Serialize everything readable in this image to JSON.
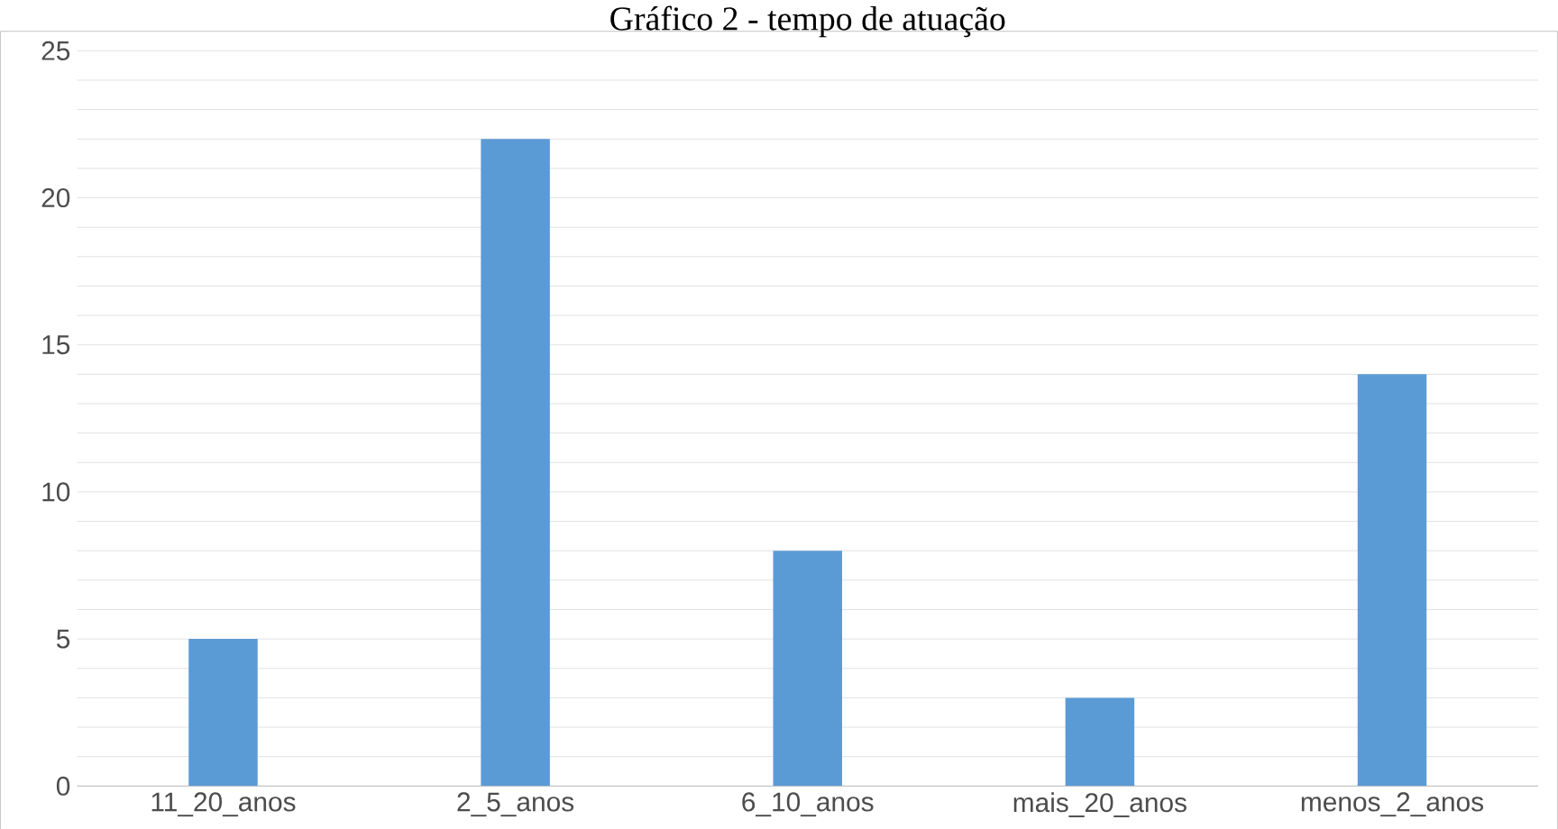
{
  "chart_data": {
    "type": "bar",
    "title": "Gráfico 2 - tempo de atuação",
    "categories": [
      "11_20_anos",
      "2_5_anos",
      "6_10_anos",
      "mais_20_anos",
      "menos_2_anos"
    ],
    "values": [
      5,
      22,
      8,
      3,
      14
    ],
    "color": "#5b9bd5",
    "ylim": [
      0,
      25
    ],
    "yticks": [
      0,
      {
        "value": 1,
        "label": null
      },
      {
        "value": 2,
        "label": null
      },
      {
        "value": 3,
        "label": null
      },
      {
        "value": 4,
        "label": null
      },
      5,
      {
        "value": 6,
        "label": null
      },
      {
        "value": 7,
        "label": null
      },
      {
        "value": 8,
        "label": null
      },
      {
        "value": 9,
        "label": null
      },
      10,
      {
        "value": 11,
        "label": null
      },
      {
        "value": 12,
        "label": null
      },
      {
        "value": 13,
        "label": null
      },
      {
        "value": 14,
        "label": null
      },
      15,
      {
        "value": 16,
        "label": null
      },
      {
        "value": 17,
        "label": null
      },
      {
        "value": 18,
        "label": null
      },
      {
        "value": 19,
        "label": null
      },
      20,
      {
        "value": 21,
        "label": null
      },
      {
        "value": 22,
        "label": null
      },
      {
        "value": 23,
        "label": null
      },
      {
        "value": 24,
        "label": null
      },
      25
    ],
    "grid": "y"
  }
}
